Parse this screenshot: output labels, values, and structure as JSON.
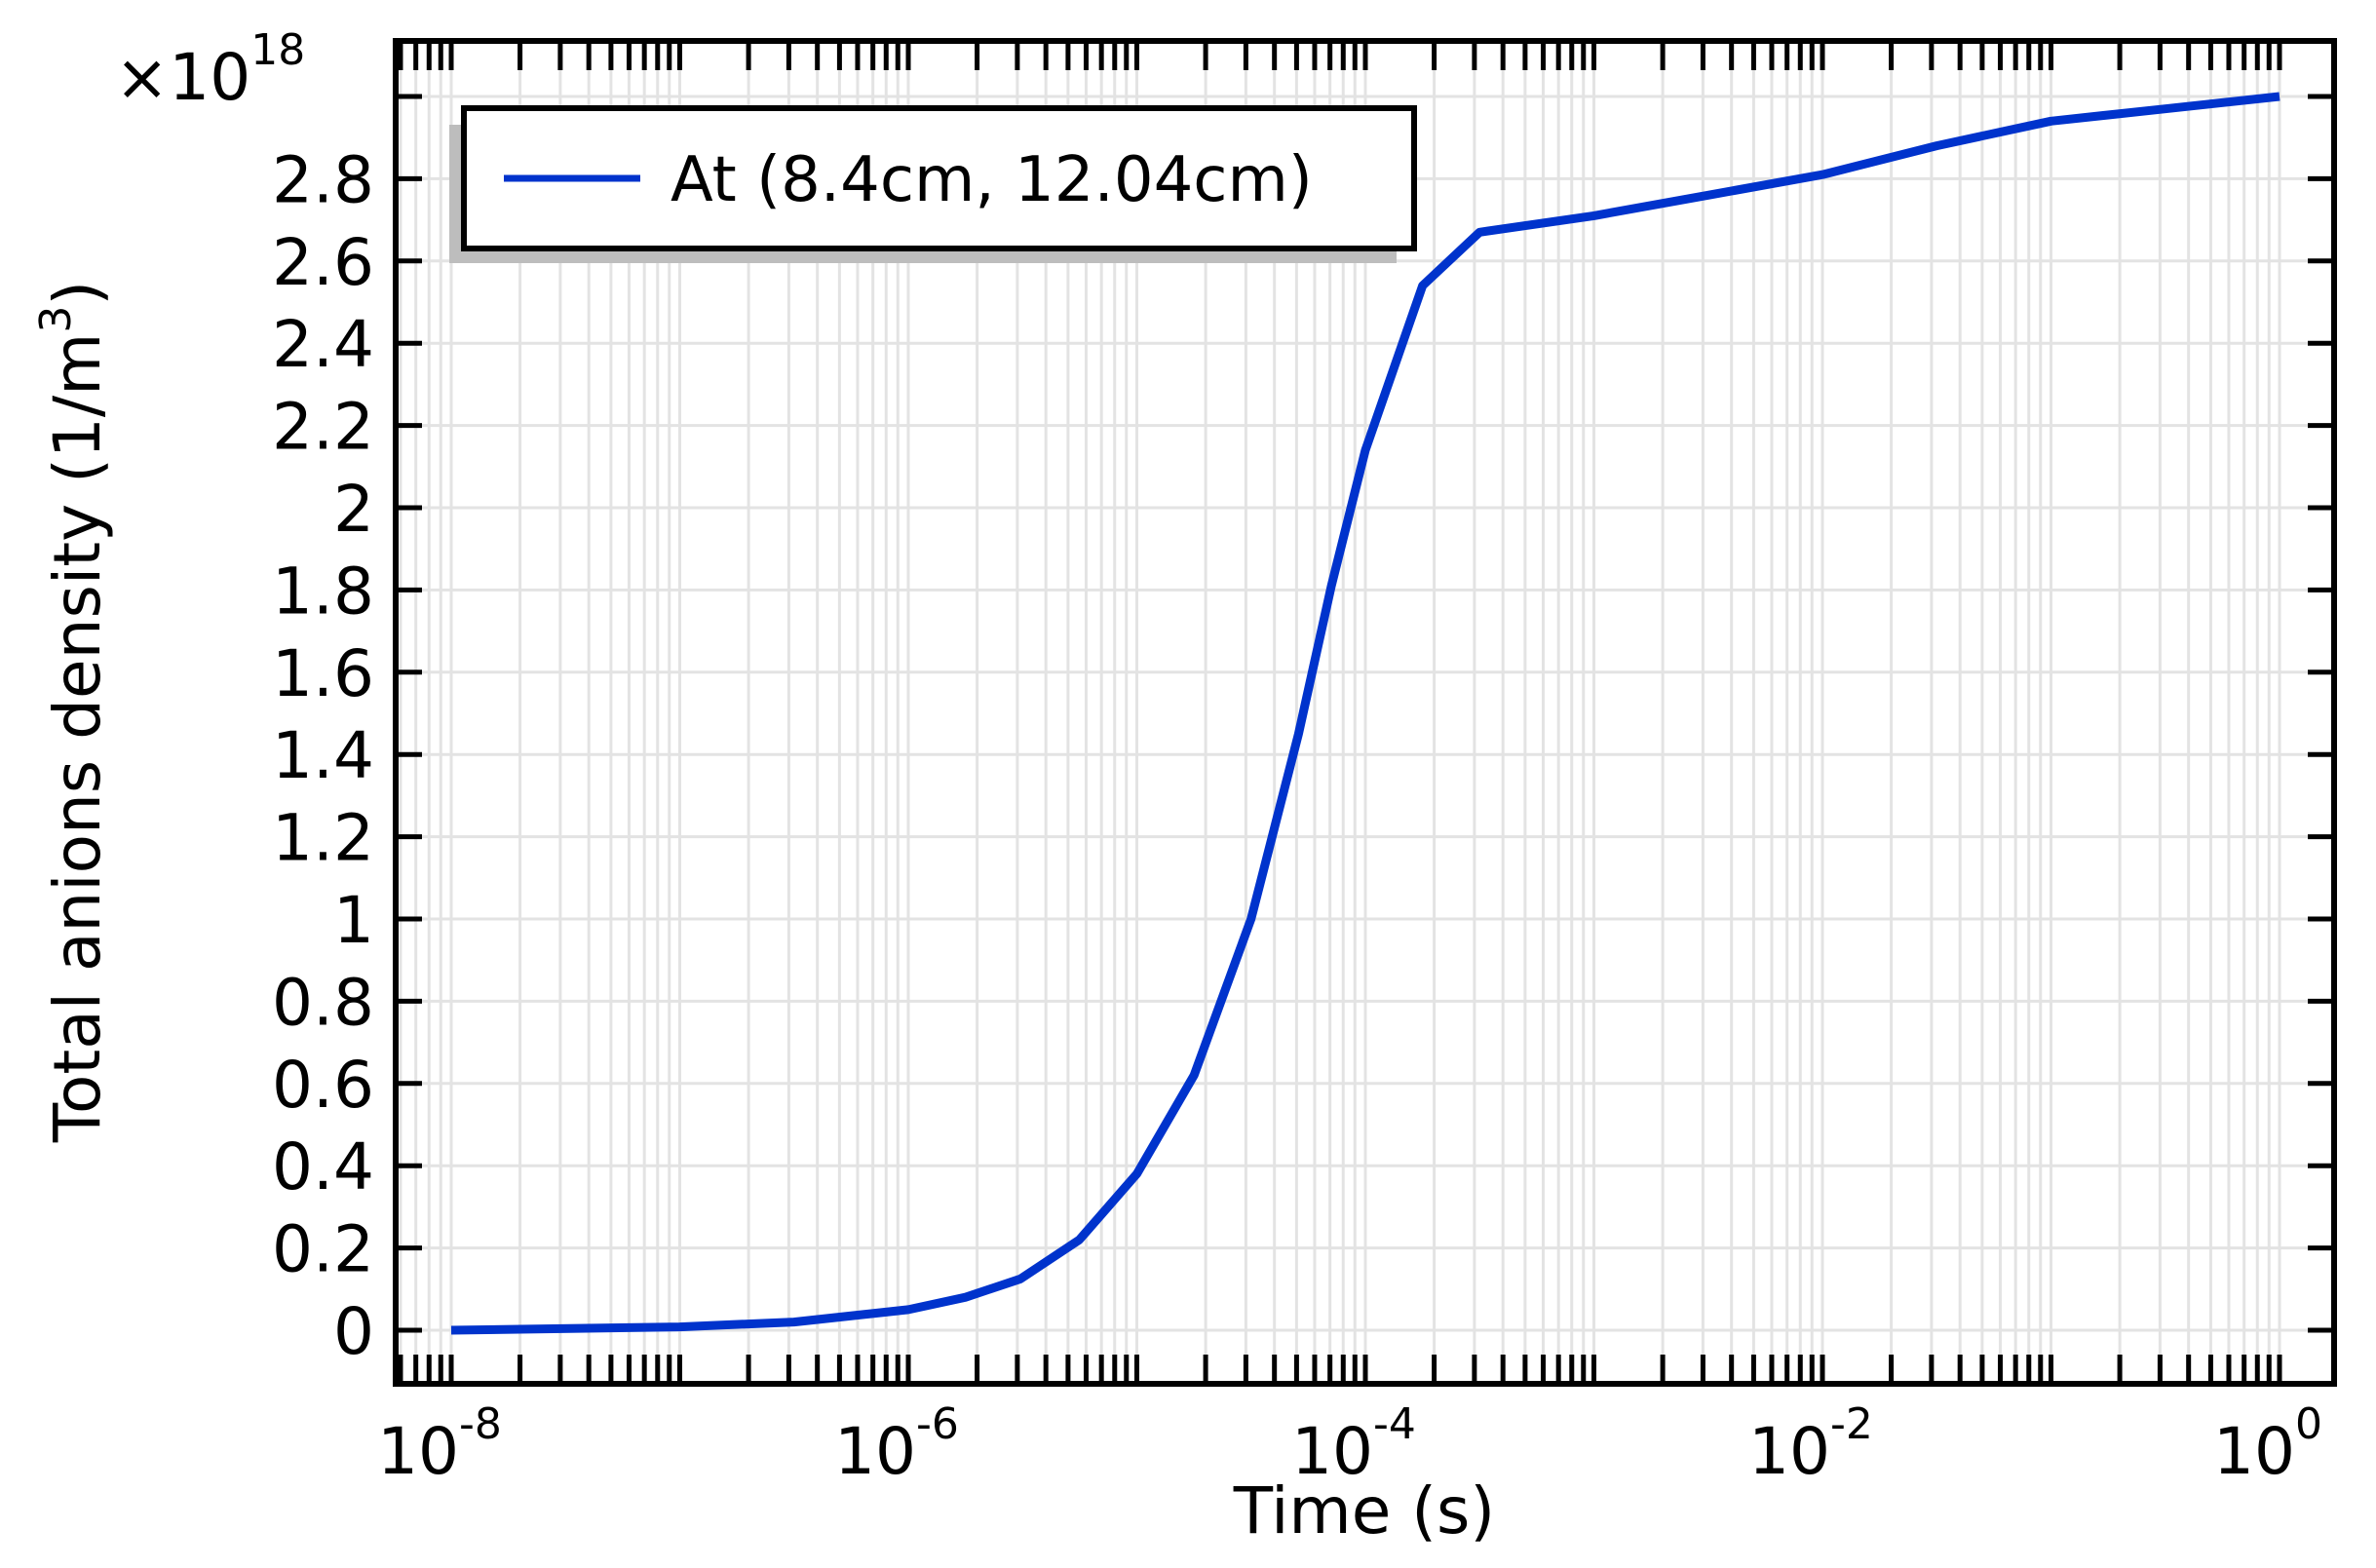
{
  "chart_data": {
    "type": "line",
    "title": "",
    "xlabel": "Time (s)",
    "ylabel": "Total anions density (1/m",
    "ylabel_sup": "3",
    "ylabel_tail": ")",
    "y_multiplier": "×10",
    "y_multiplier_exp": "18",
    "xscale": "log",
    "xlim": [
      5.7e-09,
      1.73
    ],
    "ylim": [
      -0.13,
      3.135
    ],
    "grid": true,
    "legend_position": "upper left",
    "x_ticks": [
      {
        "base": "10",
        "exp": "-8",
        "value": 1e-08
      },
      {
        "base": "10",
        "exp": "-6",
        "value": 1e-06
      },
      {
        "base": "10",
        "exp": "-4",
        "value": 0.0001
      },
      {
        "base": "10",
        "exp": "-2",
        "value": 0.01
      },
      {
        "base": "10",
        "exp": "0",
        "value": 1
      }
    ],
    "y_ticks": [
      {
        "label": "0",
        "value": 0
      },
      {
        "label": "0.2",
        "value": 0.2
      },
      {
        "label": "0.4",
        "value": 0.4
      },
      {
        "label": "0.6",
        "value": 0.6
      },
      {
        "label": "0.8",
        "value": 0.8
      },
      {
        "label": "1",
        "value": 1.0
      },
      {
        "label": "1.2",
        "value": 1.2
      },
      {
        "label": "1.4",
        "value": 1.4
      },
      {
        "label": "1.6",
        "value": 1.6
      },
      {
        "label": "1.8",
        "value": 1.8
      },
      {
        "label": "2",
        "value": 2.0
      },
      {
        "label": "2.2",
        "value": 2.2
      },
      {
        "label": "2.4",
        "value": 2.4
      },
      {
        "label": "2.6",
        "value": 2.6
      },
      {
        "label": "2.8",
        "value": 2.8
      },
      {
        "label": "",
        "value": 3.0
      }
    ],
    "series": [
      {
        "name": "At (8.4cm, 12.04cm)",
        "color": "#0033cc",
        "x": [
          1e-08,
          1e-07,
          3.16e-07,
          1e-06,
          1.78e-06,
          3.1e-06,
          5.6e-06,
          1e-05,
          1.78e-05,
          3.16e-05,
          5.1e-05,
          7.1e-05,
          0.0001,
          0.000178,
          0.000316,
          0.001,
          0.00316,
          0.01,
          0.0316,
          0.1,
          0.316,
          1
        ],
        "values": [
          0,
          0.008,
          0.02,
          0.05,
          0.08,
          0.125,
          0.22,
          0.38,
          0.62,
          1.0,
          1.45,
          1.81,
          2.14,
          2.54,
          2.67,
          2.71,
          2.76,
          2.81,
          2.88,
          2.94,
          2.97,
          3.0
        ]
      }
    ]
  },
  "legend": {
    "label": "At (8.4cm, 12.04cm)"
  },
  "colors": {
    "line": "#0033cc",
    "grid": "#e3e3e3",
    "frame": "#000000",
    "legend_shadow": "#bdbdbd"
  }
}
